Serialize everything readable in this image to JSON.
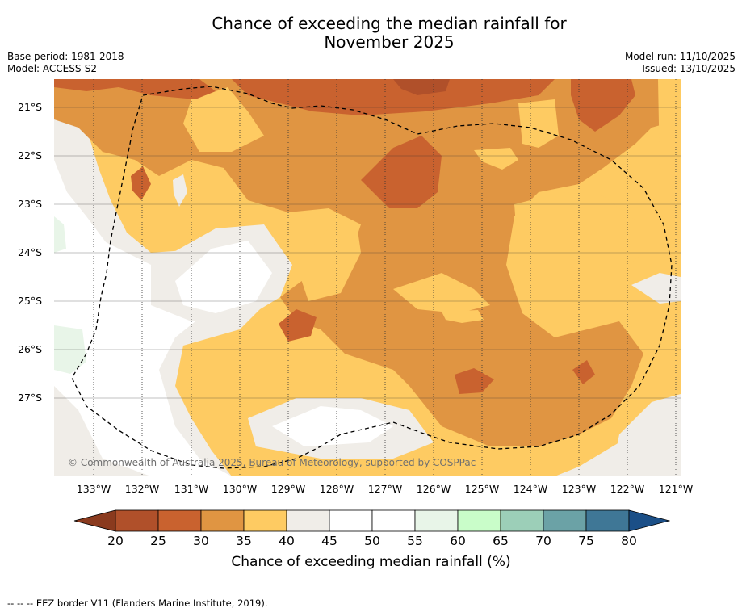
{
  "title_line1": "Chance of exceeding the median rainfall for",
  "title_line2": "November 2025",
  "meta": {
    "base_period": "Base period: 1981-2018",
    "model": "Model: ACCESS-S2",
    "model_run": "Model run: 11/10/2025",
    "issued": "Issued: 13/10/2025"
  },
  "map": {
    "copyright": "© Commonwealth of Australia 2025, Bureau of Meteorology, supported by COSPPac",
    "lat_labels": [
      "21°S",
      "22°S",
      "23°S",
      "24°S",
      "25°S",
      "26°S",
      "27°S"
    ],
    "lon_labels": [
      "133°W",
      "132°W",
      "131°W",
      "130°W",
      "129°W",
      "128°W",
      "127°W",
      "126°W",
      "125°W",
      "124°W",
      "123°W",
      "122°W",
      "121°W"
    ]
  },
  "colorbar": {
    "ticks": [
      "20",
      "25",
      "30",
      "35",
      "40",
      "45",
      "50",
      "55",
      "60",
      "65",
      "70",
      "75",
      "80"
    ],
    "label": "Chance of exceeding median rainfall (%)",
    "colors": {
      "lt20": "#8a3a1e",
      "b20_25": "#b0502a",
      "b25_30": "#c9622f",
      "b30_35": "#e09542",
      "b35_40": "#fecb62",
      "b40_45": "#f0ede8",
      "b45_50": "#ffffff",
      "b50_55": "#ffffff",
      "b55_60": "#e8f5e8",
      "b60_65": "#c9fdc9",
      "b65_70": "#9ccfb8",
      "b70_75": "#6ba2a6",
      "b75_80": "#3f7796",
      "gt80": "#1b4f87"
    }
  },
  "footnote": "--  --  -- EEZ border V11 (Flanders Marine Institute, 2019)."
}
